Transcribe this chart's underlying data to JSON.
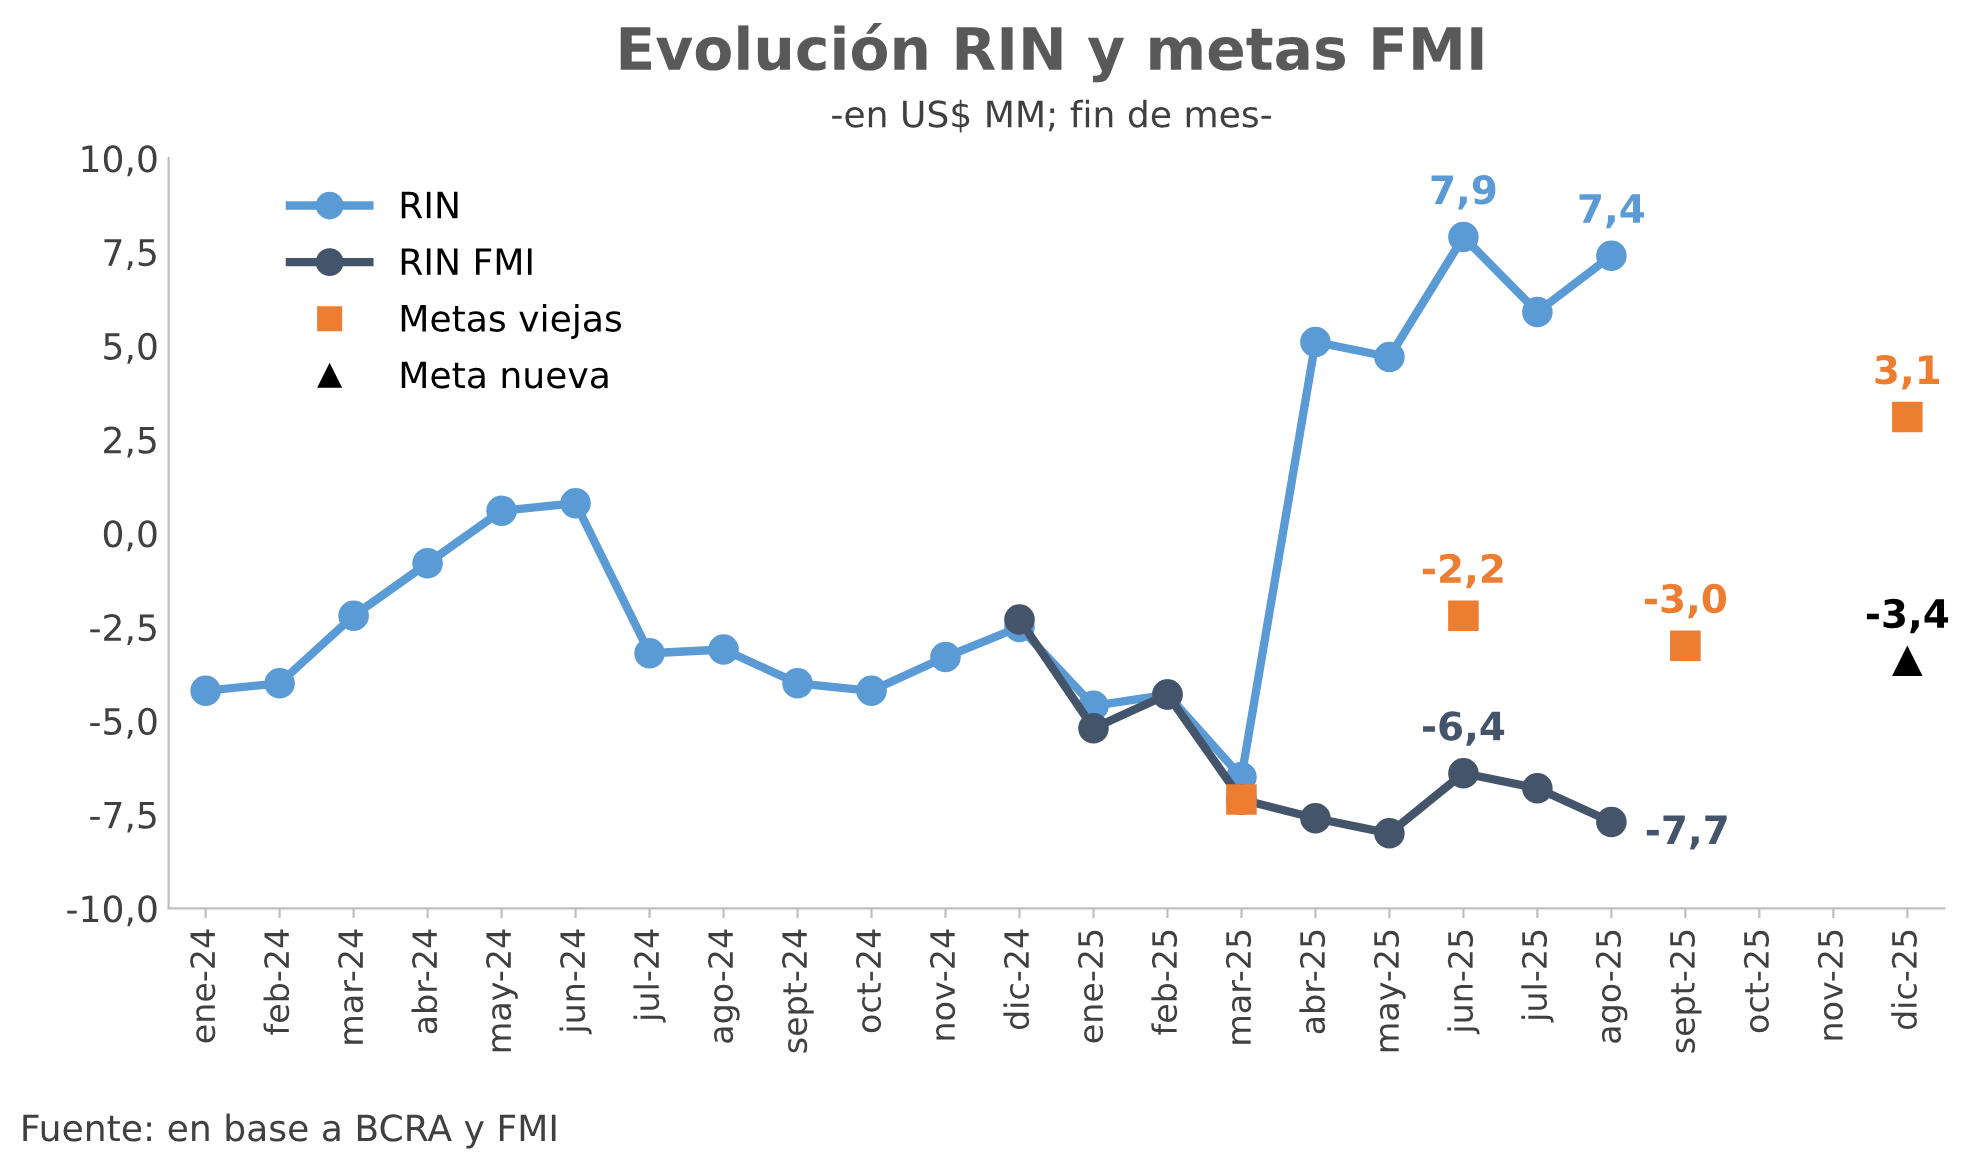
{
  "chart_data": {
    "type": "line",
    "title": "Evolución RIN y metas FMI",
    "subtitle": "-en US$ MM; fin de mes-",
    "categories": [
      "ene-24",
      "feb-24",
      "mar-24",
      "abr-24",
      "may-24",
      "jun-24",
      "jul-24",
      "ago-24",
      "sept-24",
      "oct-24",
      "nov-24",
      "dic-24",
      "ene-25",
      "feb-25",
      "mar-25",
      "abr-25",
      "may-25",
      "jun-25",
      "jul-25",
      "ago-25",
      "sept-25",
      "oct-25",
      "nov-25",
      "dic-25"
    ],
    "series": [
      {
        "name": "RIN",
        "type": "line",
        "marker": "circle",
        "color": "#5b9bd5",
        "values": [
          -4.2,
          -4.0,
          -2.2,
          -0.8,
          0.6,
          0.8,
          -3.2,
          -3.1,
          -4.0,
          -4.2,
          -3.3,
          -2.5,
          -4.6,
          -4.3,
          -6.5,
          5.1,
          4.7,
          7.9,
          5.9,
          7.4,
          null,
          null,
          null,
          null
        ],
        "value_labels": [
          null,
          null,
          null,
          null,
          null,
          null,
          null,
          null,
          null,
          null,
          null,
          null,
          null,
          null,
          null,
          null,
          null,
          "7,9",
          null,
          "7,4",
          null,
          null,
          null,
          null
        ]
      },
      {
        "name": "RIN FMI",
        "type": "line",
        "marker": "circle",
        "color": "#44546a",
        "values": [
          null,
          null,
          null,
          null,
          null,
          null,
          null,
          null,
          null,
          null,
          null,
          -2.3,
          -5.2,
          -4.3,
          -7.1,
          -7.6,
          -8.0,
          -6.4,
          -6.8,
          -7.7,
          null,
          null,
          null,
          null
        ],
        "value_labels": [
          null,
          null,
          null,
          null,
          null,
          null,
          null,
          null,
          null,
          null,
          null,
          null,
          null,
          null,
          null,
          null,
          null,
          "-6,4",
          null,
          "-7,7",
          null,
          null,
          null,
          null
        ]
      },
      {
        "name": "Metas viejas",
        "type": "scatter",
        "marker": "square",
        "color": "#ed7d31",
        "values": [
          null,
          null,
          null,
          null,
          null,
          null,
          null,
          null,
          null,
          null,
          null,
          null,
          null,
          null,
          -7.1,
          null,
          null,
          -2.2,
          null,
          null,
          -3.0,
          null,
          null,
          3.1
        ],
        "value_labels": [
          null,
          null,
          null,
          null,
          null,
          null,
          null,
          null,
          null,
          null,
          null,
          null,
          null,
          null,
          null,
          null,
          null,
          "-2,2",
          null,
          null,
          "-3,0",
          null,
          null,
          "3,1"
        ]
      },
      {
        "name": "Meta nueva",
        "type": "scatter",
        "marker": "triangle",
        "color": "#000000",
        "values": [
          null,
          null,
          null,
          null,
          null,
          null,
          null,
          null,
          null,
          null,
          null,
          null,
          null,
          null,
          null,
          null,
          null,
          null,
          null,
          null,
          null,
          null,
          null,
          -3.4
        ],
        "value_labels": [
          null,
          null,
          null,
          null,
          null,
          null,
          null,
          null,
          null,
          null,
          null,
          null,
          null,
          null,
          null,
          null,
          null,
          null,
          null,
          null,
          null,
          null,
          null,
          "-3,4"
        ]
      }
    ],
    "ylim": [
      -10,
      10
    ],
    "yticks": [
      {
        "value": -10,
        "label": "-10,0"
      },
      {
        "value": -7.5,
        "label": "-7,5"
      },
      {
        "value": -5,
        "label": "-5,0"
      },
      {
        "value": -2.5,
        "label": "-2,5"
      },
      {
        "value": 0,
        "label": "0,0"
      },
      {
        "value": 2.5,
        "label": "2,5"
      },
      {
        "value": 5,
        "label": "5,0"
      },
      {
        "value": 7.5,
        "label": "7,5"
      },
      {
        "value": 10,
        "label": "10,0"
      }
    ],
    "grid": false,
    "legend": "top left",
    "annotations": [
      "Fuente: en base a BCRA y FMI"
    ]
  }
}
